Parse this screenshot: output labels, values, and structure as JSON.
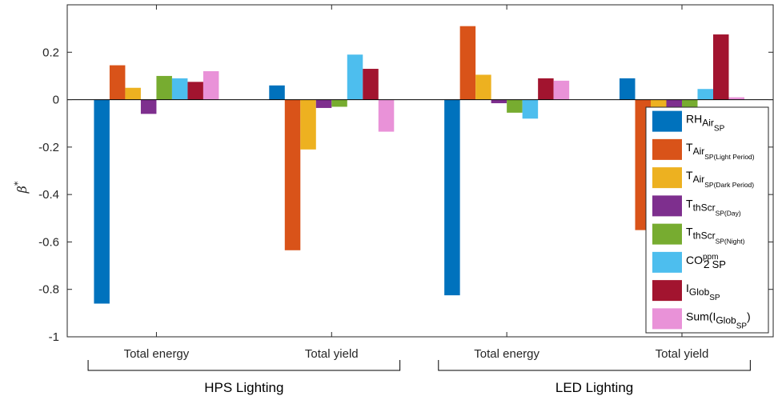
{
  "chart_data": {
    "type": "bar",
    "ylabel": "β",
    "ylabel_sup": "*",
    "ylim": [
      -1,
      0.4
    ],
    "yticks": [
      -1,
      -0.8,
      -0.6,
      -0.4,
      -0.2,
      0,
      0.2
    ],
    "ytick_labels": [
      "-1",
      "-0.8",
      "-0.6",
      "-0.4",
      "-0.2",
      "0",
      "0.2"
    ],
    "categories": [
      "Total energy",
      "Total yield",
      "Total energy",
      "Total yield"
    ],
    "groups": [
      {
        "label": "HPS Lighting",
        "category_indices": [
          0,
          1
        ]
      },
      {
        "label": "LED Lighting",
        "category_indices": [
          2,
          3
        ]
      }
    ],
    "legend_position": "right",
    "grid": false,
    "series": [
      {
        "name": "RH",
        "sub": "Air",
        "subsub": "SP",
        "color": "#0072BD",
        "values": [
          -0.86,
          0.06,
          -0.825,
          0.09
        ]
      },
      {
        "name": "T",
        "sub": "Air",
        "subsub": "SP(Light Period)",
        "color": "#D95319",
        "values": [
          0.145,
          -0.635,
          0.31,
          -0.55
        ]
      },
      {
        "name": "T",
        "sub": "Air",
        "subsub": "SP(Dark Period)",
        "color": "#EDB120",
        "values": [
          0.05,
          -0.21,
          0.105,
          -0.165
        ]
      },
      {
        "name": "T",
        "sub": "thScr",
        "subsub": "SP(Day)",
        "color": "#7E2F8E",
        "values": [
          -0.06,
          -0.035,
          -0.015,
          -0.03
        ]
      },
      {
        "name": "T",
        "sub": "thScr",
        "subsub": "SP(Night)",
        "color": "#77AC30",
        "values": [
          0.1,
          -0.03,
          -0.055,
          -0.14
        ]
      },
      {
        "name": "CO",
        "sub": "2",
        "sup": "ppm",
        "subsub": "SP",
        "color": "#4DBEEE",
        "values": [
          0.09,
          0.19,
          -0.08,
          0.045
        ]
      },
      {
        "name": "I",
        "sub": "Glob",
        "subsub": "SP",
        "color": "#A2142F",
        "values": [
          0.075,
          0.13,
          0.09,
          0.275
        ]
      },
      {
        "name": "Sum(I",
        "sub": "Glob",
        "subsub": "SP",
        "suffix": ")",
        "color": "#E992D8",
        "values": [
          0.12,
          -0.135,
          0.08,
          0.01
        ]
      }
    ]
  }
}
